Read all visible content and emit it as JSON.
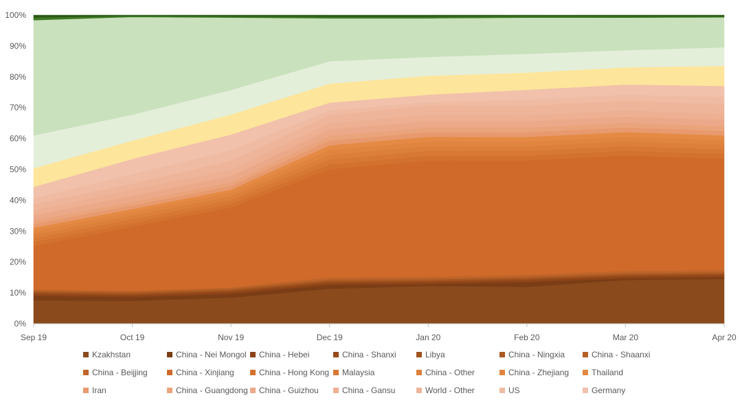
{
  "chart_data": {
    "type": "area",
    "stacked": "percent",
    "title": "",
    "categories": [
      "Sep 19",
      "Oct 19",
      "Nov 19",
      "Dec 19",
      "Jan 20",
      "Feb 20",
      "Mar 20",
      "Apr 20"
    ],
    "ylim": [
      0,
      100
    ],
    "y_ticks": [
      "0%",
      "10%",
      "20%",
      "30%",
      "40%",
      "50%",
      "60%",
      "70%",
      "80%",
      "90%",
      "100%"
    ],
    "legend_position": "bottom",
    "series": [
      {
        "name": "Kzakhstan",
        "color": "#8a4a1c",
        "values": [
          7.5,
          7.5,
          8.5,
          11,
          12,
          11.8,
          14,
          14.5
        ]
      },
      {
        "name": "China - Nei Mongol",
        "color": "#7a3d15",
        "values": [
          1.4,
          1.2,
          1.2,
          1.2,
          0.6,
          1.5,
          0.5,
          0.5
        ]
      },
      {
        "name": "China - Hebei",
        "color": "#8c4318",
        "values": [
          0.5,
          0.5,
          0.5,
          0.5,
          0.5,
          0.5,
          0.5,
          0.5
        ]
      },
      {
        "name": "China - Shanxi",
        "color": "#96491a",
        "values": [
          0.4,
          0.4,
          0.4,
          0.4,
          0.4,
          0.4,
          0.4,
          0.4
        ]
      },
      {
        "name": "Libya",
        "color": "#a0521f",
        "values": [
          0.3,
          0.3,
          0.3,
          0.3,
          0.3,
          0.3,
          0.3,
          0.3
        ]
      },
      {
        "name": "China - Ningxia",
        "color": "#aa5a22",
        "values": [
          0.3,
          0.3,
          0.3,
          0.3,
          0.3,
          0.3,
          0.3,
          0.3
        ]
      },
      {
        "name": "China - Shaanxi",
        "color": "#b45f24",
        "values": [
          0.3,
          0.3,
          0.3,
          0.3,
          0.3,
          0.3,
          0.3,
          0.3
        ]
      },
      {
        "name": "China - Beijjing",
        "color": "#c0652a",
        "values": [
          0.3,
          0.3,
          0.3,
          0.6,
          0.6,
          0.6,
          0.6,
          0.6
        ]
      },
      {
        "name": "China - Xinjiang",
        "color": "#d06a2a",
        "values": [
          14,
          21,
          26,
          34,
          37,
          36.6,
          36.9,
          36
        ]
      },
      {
        "name": "China - Hong Kong",
        "color": "#d3722f",
        "values": [
          1.2,
          1.2,
          1.2,
          1.5,
          1.5,
          1.5,
          1.5,
          1.5
        ]
      },
      {
        "name": "Malaysia",
        "color": "#d77934",
        "values": [
          1.2,
          1.2,
          1.2,
          1.5,
          1.5,
          1.5,
          1.5,
          1.5
        ]
      },
      {
        "name": "China - Other",
        "color": "#db7f3a",
        "values": [
          1.2,
          1.2,
          1.2,
          1.5,
          1.5,
          1.5,
          1.5,
          1.5
        ]
      },
      {
        "name": "China - Zhejiang",
        "color": "#df8540",
        "values": [
          1.2,
          1.2,
          1.2,
          1.5,
          1.5,
          1.5,
          1.5,
          1.5
        ]
      },
      {
        "name": "Thailand",
        "color": "#e58a44",
        "values": [
          1.0,
          1.0,
          1.0,
          1.5,
          1.5,
          1.5,
          1.5,
          1.5
        ]
      },
      {
        "name": "Iran",
        "color": "#e89a6e",
        "values": [
          1.2,
          1.2,
          1.2,
          1.5,
          1.5,
          1.5,
          1.5,
          1.5
        ]
      },
      {
        "name": "China - Guangdong",
        "color": "#eaa47c",
        "values": [
          1.2,
          1.2,
          1.2,
          1.5,
          1.5,
          1.5,
          1.5,
          1.5
        ]
      },
      {
        "name": "China - Guizhou",
        "color": "#eca98a",
        "values": [
          1.6,
          2.0,
          2.0,
          2.0,
          2.0,
          2.0,
          2.0,
          2.0
        ]
      },
      {
        "name": "China - Gansu",
        "color": "#eeb092",
        "values": [
          1.6,
          2.0,
          2.0,
          2.0,
          2.0,
          2.0,
          2.0,
          2.0
        ]
      },
      {
        "name": "World - Other",
        "color": "#efb59a",
        "values": [
          2.0,
          2.0,
          3.0,
          2.5,
          3.0,
          3.0,
          3.0,
          3.0
        ]
      },
      {
        "name": "US",
        "color": "#f0bba3",
        "values": [
          2.0,
          3.0,
          3.5,
          1.5,
          1.0,
          2.0,
          2.0,
          2.5
        ]
      },
      {
        "name": "Germany",
        "color": "#f1c1ab",
        "values": [
          3.5,
          5.0,
          5.0,
          2.4,
          2.4,
          3.1,
          3.2,
          3.5
        ]
      },
      {
        "name": "",
        "color": "#fde59b",
        "values": [
          6,
          6,
          6.5,
          6,
          6,
          5.5,
          5.5,
          6.5
        ]
      },
      {
        "name": "",
        "color": "#e4efda",
        "values": [
          10.5,
          8.5,
          8,
          7,
          6,
          6,
          5.5,
          6
        ]
      },
      {
        "name": "",
        "color": "#c9e1bc",
        "values": [
          37,
          32,
          23.5,
          13.5,
          12.3,
          11.6,
          10.4,
          9.7
        ]
      },
      {
        "name": "",
        "color": "#3f7a24",
        "values": [
          0.8,
          0.4,
          0.4,
          0.5,
          0.5,
          0.5,
          0.4,
          0.3
        ]
      },
      {
        "name": "",
        "color": "#2d5a17",
        "values": [
          0.8,
          0.2,
          0.4,
          0.5,
          0.5,
          0.3,
          0.4,
          0.4
        ]
      }
    ]
  }
}
